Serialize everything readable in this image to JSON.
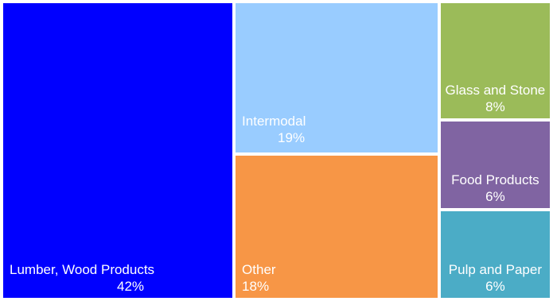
{
  "chart_data": {
    "type": "treemap",
    "tiles": [
      {
        "name": "Lumber, Wood Products",
        "value": 42,
        "label": "42%",
        "color": "#0000FF"
      },
      {
        "name": "Intermodal",
        "value": 19,
        "label": "19%",
        "color": "#99CCFF"
      },
      {
        "name": "Other",
        "value": 18,
        "label": "18%",
        "color": "#F79646"
      },
      {
        "name": "Glass and Stone",
        "value": 8,
        "label": "8%",
        "color": "#9BBB59"
      },
      {
        "name": "Food Products",
        "value": 6,
        "label": "6%",
        "color": "#8064A2"
      },
      {
        "name": "Pulp and Paper",
        "value": 6,
        "label": "6%",
        "color": "#4BACC6"
      }
    ]
  }
}
